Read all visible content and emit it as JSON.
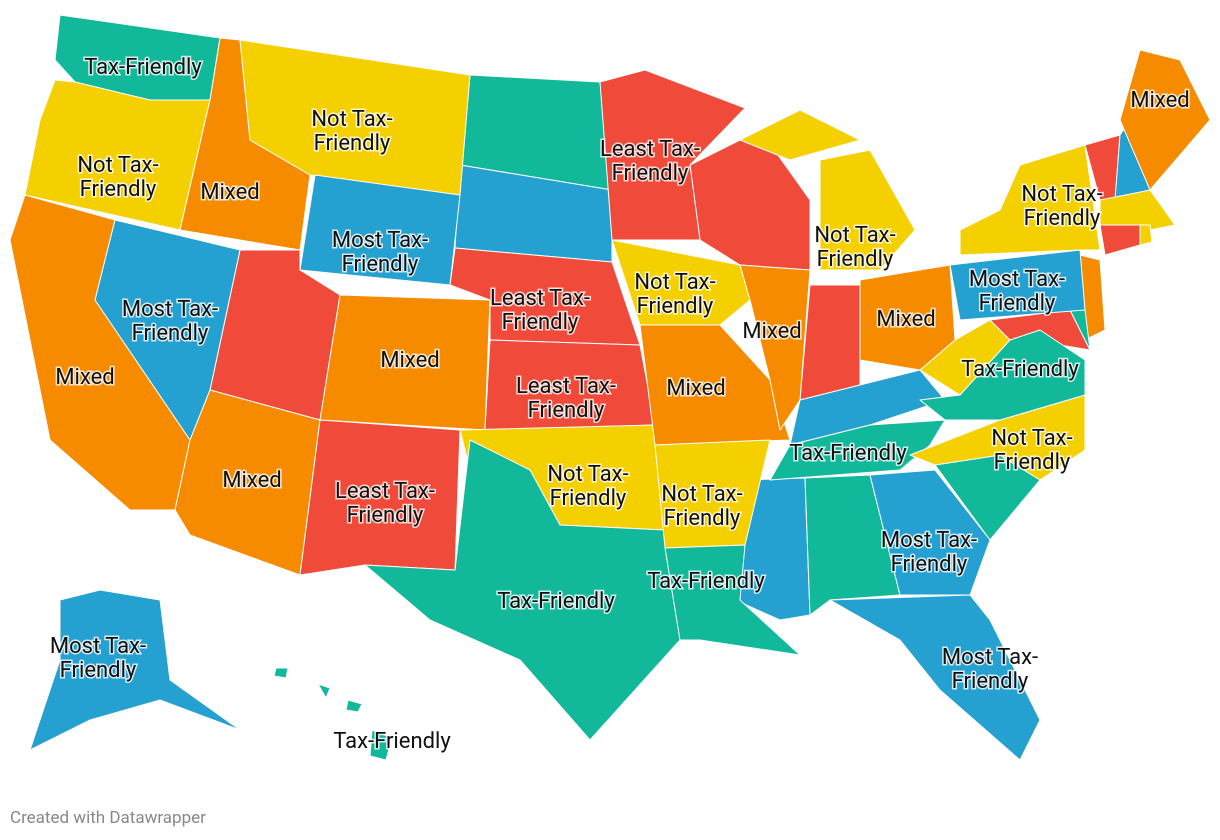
{
  "map": {
    "labels": [
      {
        "text": "Tax-Friendly",
        "color": "#11b89a"
      },
      {
        "text": "Not Tax-Friendly",
        "color": "#f5d000"
      },
      {
        "text": "Mixed",
        "color": "#f68b00"
      },
      {
        "text": "Not Tax-Friendly",
        "color": "#f5d000"
      },
      {
        "text": "Most Tax-Friendly",
        "color": "#24a0d1"
      },
      {
        "text": "Mixed",
        "color": "#f68b00"
      },
      {
        "text": "Most Tax-Friendly",
        "color": "#24a0d1"
      },
      {
        "text": "Mixed",
        "color": "#f68b00"
      },
      {
        "text": "Mixed",
        "color": "#f68b00"
      },
      {
        "text": "Least Tax-Friendly",
        "color": "#ef4a3a"
      },
      {
        "text": "Least Tax-Friendly",
        "color": "#ef4a3a"
      },
      {
        "text": "Least Tax-Friendly",
        "color": "#ef4a3a"
      },
      {
        "text": "Not Tax-Friendly",
        "color": "#f5d000"
      },
      {
        "text": "Tax-Friendly",
        "color": "#11b89a"
      },
      {
        "text": "Least Tax-Friendly",
        "color": "#ef4a3a"
      },
      {
        "text": "Not Tax-Friendly",
        "color": "#f5d000"
      },
      {
        "text": "Mixed",
        "color": "#f68b00"
      },
      {
        "text": "Not Tax-Friendly",
        "color": "#f5d000"
      },
      {
        "text": "Tax-Friendly",
        "color": "#11b89a"
      },
      {
        "text": "Mixed",
        "color": "#f68b00"
      },
      {
        "text": "Not Tax-Friendly",
        "color": "#f5d000"
      },
      {
        "text": "Mixed",
        "color": "#f68b00"
      },
      {
        "text": "Tax-Friendly",
        "color": "#11b89a"
      },
      {
        "text": "Most Tax-Friendly",
        "color": "#24a0d1"
      },
      {
        "text": "Most Tax-Friendly",
        "color": "#24a0d1"
      },
      {
        "text": "Not Tax-Friendly",
        "color": "#f5d000"
      },
      {
        "text": "Tax-Friendly",
        "color": "#11b89a"
      },
      {
        "text": "Most Tax-Friendly",
        "color": "#24a0d1"
      },
      {
        "text": "Not Tax-Friendly",
        "color": "#f5d000"
      },
      {
        "text": "Mixed",
        "color": "#f68b00"
      },
      {
        "text": "Most Tax-Friendly",
        "color": "#24a0d1"
      },
      {
        "text": "Tax-Friendly",
        "color": "#11b89a"
      }
    ],
    "footer": "Created with Datawrapper"
  }
}
